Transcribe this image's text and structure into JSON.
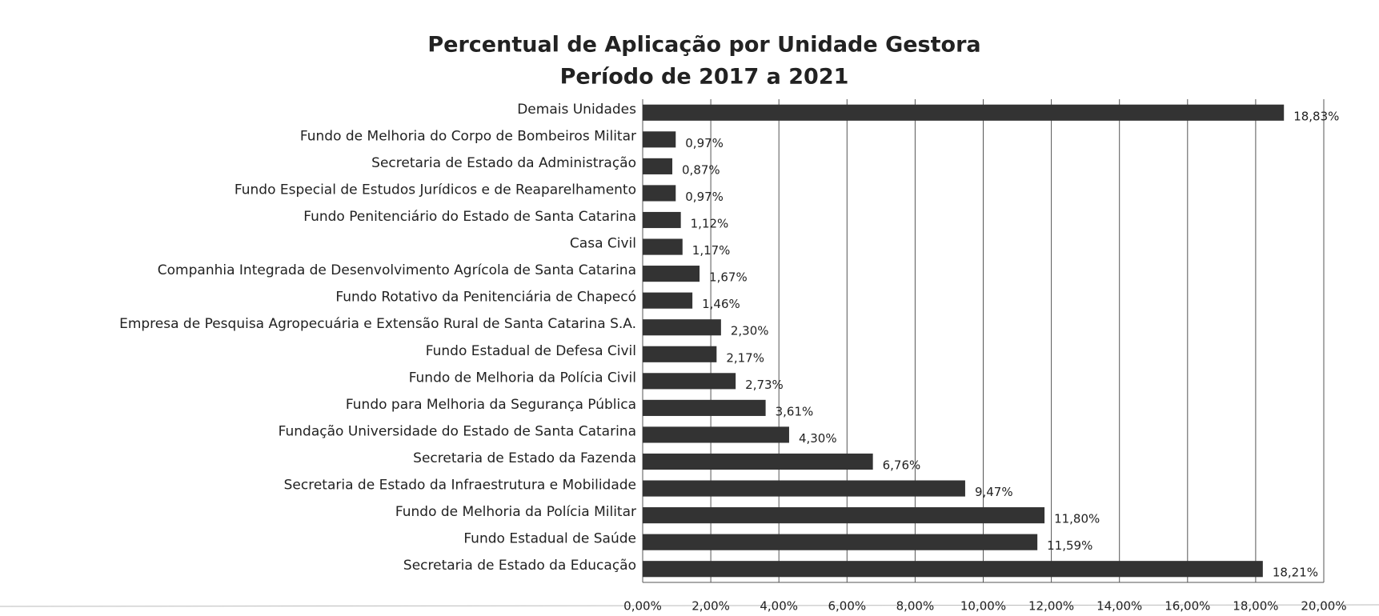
{
  "chart_data": {
    "type": "bar",
    "orientation": "horizontal",
    "title": "Percentual de Aplicação por Unidade Gestora",
    "subtitle": "Período de 2017 a 2021",
    "categories": [
      "Demais Unidades",
      "Fundo de Melhoria do Corpo de Bombeiros Militar",
      "Secretaria de Estado da Administração",
      "Fundo Especial de Estudos Jurídicos e de Reaparelhamento",
      "Fundo Penitenciário do Estado de Santa Catarina",
      "Casa Civil",
      "Companhia Integrada de Desenvolvimento Agrícola de Santa Catarina",
      "Fundo Rotativo da Penitenciária de Chapecó",
      "Empresa de Pesquisa Agropecuária e Extensão Rural de Santa Catarina S.A.",
      "Fundo Estadual de Defesa Civil",
      "Fundo de Melhoria da Polícia Civil",
      "Fundo para Melhoria da Segurança Pública",
      "Fundação Universidade do Estado de Santa Catarina",
      "Secretaria de Estado da Fazenda",
      "Secretaria de Estado da Infraestrutura e Mobilidade",
      "Fundo de Melhoria da Polícia Militar",
      "Fundo Estadual de Saúde",
      "Secretaria de Estado da Educação"
    ],
    "values": [
      18.83,
      0.97,
      0.87,
      0.97,
      1.12,
      1.17,
      1.67,
      1.46,
      2.3,
      2.17,
      2.73,
      3.61,
      4.3,
      6.76,
      9.47,
      11.8,
      11.59,
      18.21
    ],
    "value_labels": [
      "18,83%",
      "0,97%",
      "0,87%",
      "0,97%",
      "1,12%",
      "1,17%",
      "1,67%",
      "1,46%",
      "2,30%",
      "2,17%",
      "2,73%",
      "3,61%",
      "4,30%",
      "6,76%",
      "9,47%",
      "11,80%",
      "11,59%",
      "18,21%"
    ],
    "color": "#333333",
    "xlim": [
      0,
      20
    ],
    "xticks": [
      {
        "value": 0,
        "label": "0,00%"
      },
      {
        "value": 2,
        "label": "2,00%"
      },
      {
        "value": 4,
        "label": "4,00%"
      },
      {
        "value": 6,
        "label": "6,00%"
      },
      {
        "value": 8,
        "label": "8,00%"
      },
      {
        "value": 10,
        "label": "10,00%"
      },
      {
        "value": 12,
        "label": "12,00%"
      },
      {
        "value": 14,
        "label": "14,00%"
      },
      {
        "value": 16,
        "label": "16,00%"
      },
      {
        "value": 18,
        "label": "18,00%"
      },
      {
        "value": 20,
        "label": "20,00%"
      }
    ],
    "grid": true
  }
}
